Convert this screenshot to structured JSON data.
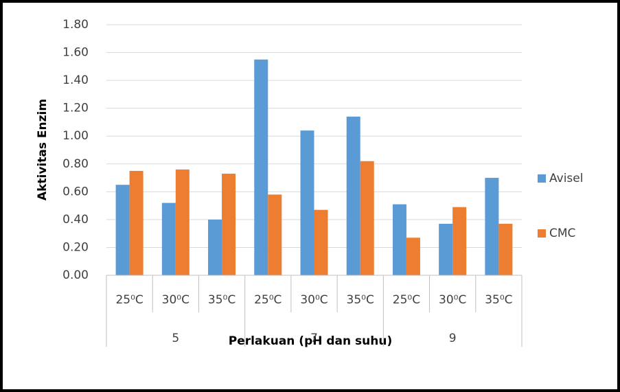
{
  "chart_data": {
    "type": "bar",
    "y_label": "Aktivitas Enzim",
    "x_label": "Perlakuan (pH dan suhu)",
    "categories": [
      "25⁰C",
      "30⁰C",
      "35⁰C",
      "25⁰C",
      "30⁰C",
      "35⁰C",
      "25⁰C",
      "30⁰C",
      "35⁰C"
    ],
    "groups": [
      "5",
      "7",
      "9"
    ],
    "series": [
      {
        "name": "Avisel",
        "color": "#5b9bd5",
        "values": [
          0.65,
          0.52,
          0.4,
          1.55,
          1.04,
          1.14,
          0.51,
          0.37,
          0.7
        ]
      },
      {
        "name": "CMC",
        "color": "#ed7d31",
        "values": [
          0.75,
          0.76,
          0.73,
          0.58,
          0.47,
          0.82,
          0.27,
          0.49,
          0.37
        ]
      }
    ],
    "ylim": [
      0,
      1.8
    ],
    "yticks": [
      {
        "value": 0,
        "label": "0.00"
      },
      {
        "value": 0.2,
        "label": "0.20"
      },
      {
        "value": 0.4,
        "label": "0.40"
      },
      {
        "value": 0.6,
        "label": "0.60"
      },
      {
        "value": 0.8,
        "label": "0.80"
      },
      {
        "value": 1.0,
        "label": "1.00"
      },
      {
        "value": 1.2,
        "label": "1.20"
      },
      {
        "value": 1.4,
        "label": "1.40"
      },
      {
        "value": 1.6,
        "label": "1.60"
      },
      {
        "value": 1.8,
        "label": "1.80"
      }
    ],
    "grid": true,
    "legend": "right"
  }
}
